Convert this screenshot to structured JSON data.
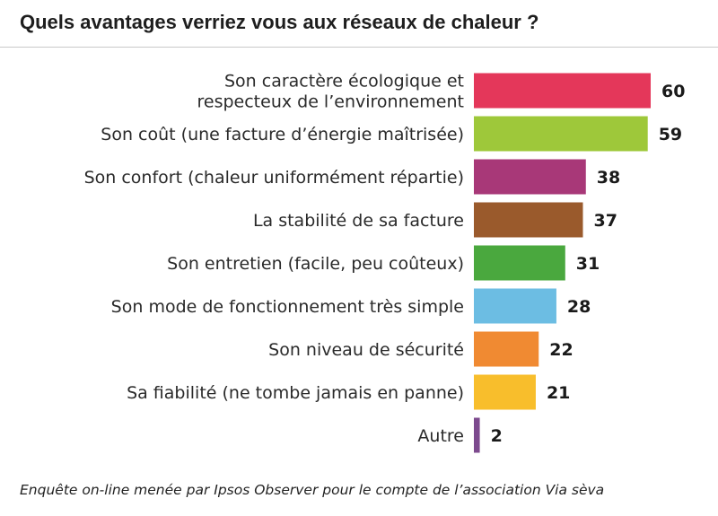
{
  "chart_data": {
    "type": "bar",
    "orientation": "horizontal",
    "title": "Quels avantages verriez vous aux réseaux de chaleur ?",
    "categories": [
      [
        "Son caractère écologique et",
        "respecteux de l’environnement"
      ],
      [
        "Son coût (une facture d’énergie maîtrisée)"
      ],
      [
        "Son confort (chaleur uniformément répartie)"
      ],
      [
        "La stabilité de sa facture"
      ],
      [
        "Son entretien (facile, peu coûteux)"
      ],
      [
        "Son mode de fonctionnement très simple"
      ],
      [
        "Son niveau de sécurité"
      ],
      [
        "Sa fiabilité (ne tombe jamais en  panne)"
      ],
      [
        "Autre"
      ]
    ],
    "values": [
      60,
      59,
      38,
      37,
      31,
      28,
      22,
      21,
      2
    ],
    "colors": [
      "#e4375a",
      "#9ec83a",
      "#a83878",
      "#9a5a2c",
      "#4aa83e",
      "#6cbde3",
      "#f08a32",
      "#f8be2c",
      "#7d4a8e"
    ],
    "xlim": [
      0,
      60
    ],
    "grid": false,
    "legend": "none",
    "source": "Enquête on-line menée par Ipsos Observer pour le compte de l’association Via sèva"
  }
}
